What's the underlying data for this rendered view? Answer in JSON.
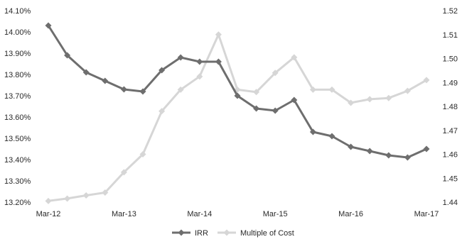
{
  "chart_data": {
    "type": "line",
    "title": "",
    "x": [
      "Mar-12",
      "",
      "",
      "",
      "Mar-13",
      "",
      "",
      "",
      "Mar-14",
      "",
      "",
      "",
      "Mar-15",
      "",
      "",
      "",
      "Mar-16",
      "",
      "",
      "",
      "Mar-17"
    ],
    "x_tick_labels": [
      "Mar-12",
      "Mar-13",
      "Mar-14",
      "Mar-15",
      "Mar-16",
      "Mar-17"
    ],
    "y_left": {
      "range": [
        13.2,
        14.1
      ],
      "ticks": [
        "14.10%",
        "14.00%",
        "13.90%",
        "13.80%",
        "13.70%",
        "13.60%",
        "13.50%",
        "13.40%",
        "13.30%",
        "13.20%"
      ]
    },
    "y_right": {
      "range": [
        1.44,
        1.52
      ],
      "ticks": [
        "1.52",
        "1.51",
        "1.50",
        "1.49",
        "1.48",
        "1.47",
        "1.46",
        "1.45",
        "1.44"
      ]
    },
    "grid": false,
    "legend_position": "bottom",
    "series": [
      {
        "name": "IRR",
        "axis": "left",
        "color": "#6e6e6e",
        "marker": "diamond",
        "values": [
          14.03,
          13.89,
          13.81,
          13.77,
          13.73,
          13.72,
          13.82,
          13.88,
          13.86,
          13.86,
          13.7,
          13.64,
          13.63,
          13.68,
          13.53,
          13.51,
          13.46,
          13.44,
          13.42,
          13.41,
          13.45
        ]
      },
      {
        "name": "Multiple of Cost",
        "axis": "right",
        "color": "#d6d6d6",
        "marker": "diamond",
        "values": [
          1.4405,
          1.4415,
          1.4428,
          1.444,
          1.4525,
          1.46,
          1.478,
          1.487,
          1.4925,
          1.51,
          1.487,
          1.486,
          1.494,
          1.5005,
          1.487,
          1.487,
          1.4815,
          1.483,
          1.4835,
          1.4865,
          1.491
        ]
      }
    ]
  }
}
